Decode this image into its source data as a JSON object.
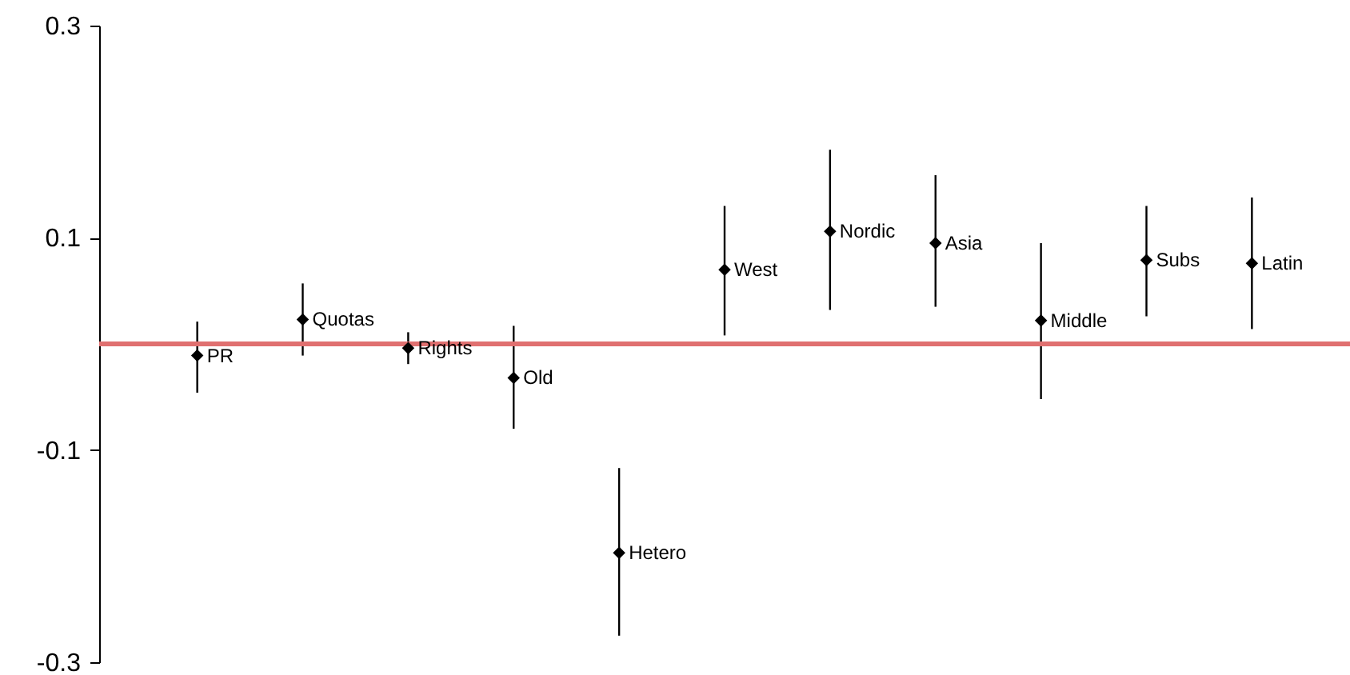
{
  "chart_data": {
    "type": "scatter",
    "categories": [
      "PR",
      "Quotas",
      "Rights",
      "Old",
      "Hetero",
      "West",
      "Nordic",
      "Asia",
      "Middle",
      "Subs",
      "Latin"
    ],
    "values": [
      -0.011,
      0.023,
      -0.004,
      -0.032,
      -0.197,
      0.07,
      0.106,
      0.095,
      0.022,
      0.079,
      0.076
    ],
    "errors": [
      [
        -0.046,
        0.021
      ],
      [
        -0.011,
        0.057
      ],
      [
        -0.019,
        0.011
      ],
      [
        -0.08,
        0.017
      ],
      [
        -0.275,
        -0.117
      ],
      [
        0.008,
        0.13
      ],
      [
        0.032,
        0.183
      ],
      [
        0.035,
        0.159
      ],
      [
        -0.052,
        0.095
      ],
      [
        0.026,
        0.13
      ],
      [
        0.014,
        0.138
      ]
    ],
    "color": "#000000",
    "marker": "diamond",
    "ylim": [
      -0.3,
      0.3
    ],
    "yticks": [
      {
        "value": -0.3,
        "label": "-0.3"
      },
      {
        "value": -0.1,
        "label": "-0.1"
      },
      {
        "value": 0.1,
        "label": "0.1"
      },
      {
        "value": 0.3,
        "label": "0.3"
      }
    ],
    "grid": false,
    "tick_labels": "y",
    "ref_lines": [
      {
        "axis": "y",
        "value": 0,
        "color": "#e07070"
      }
    ]
  }
}
